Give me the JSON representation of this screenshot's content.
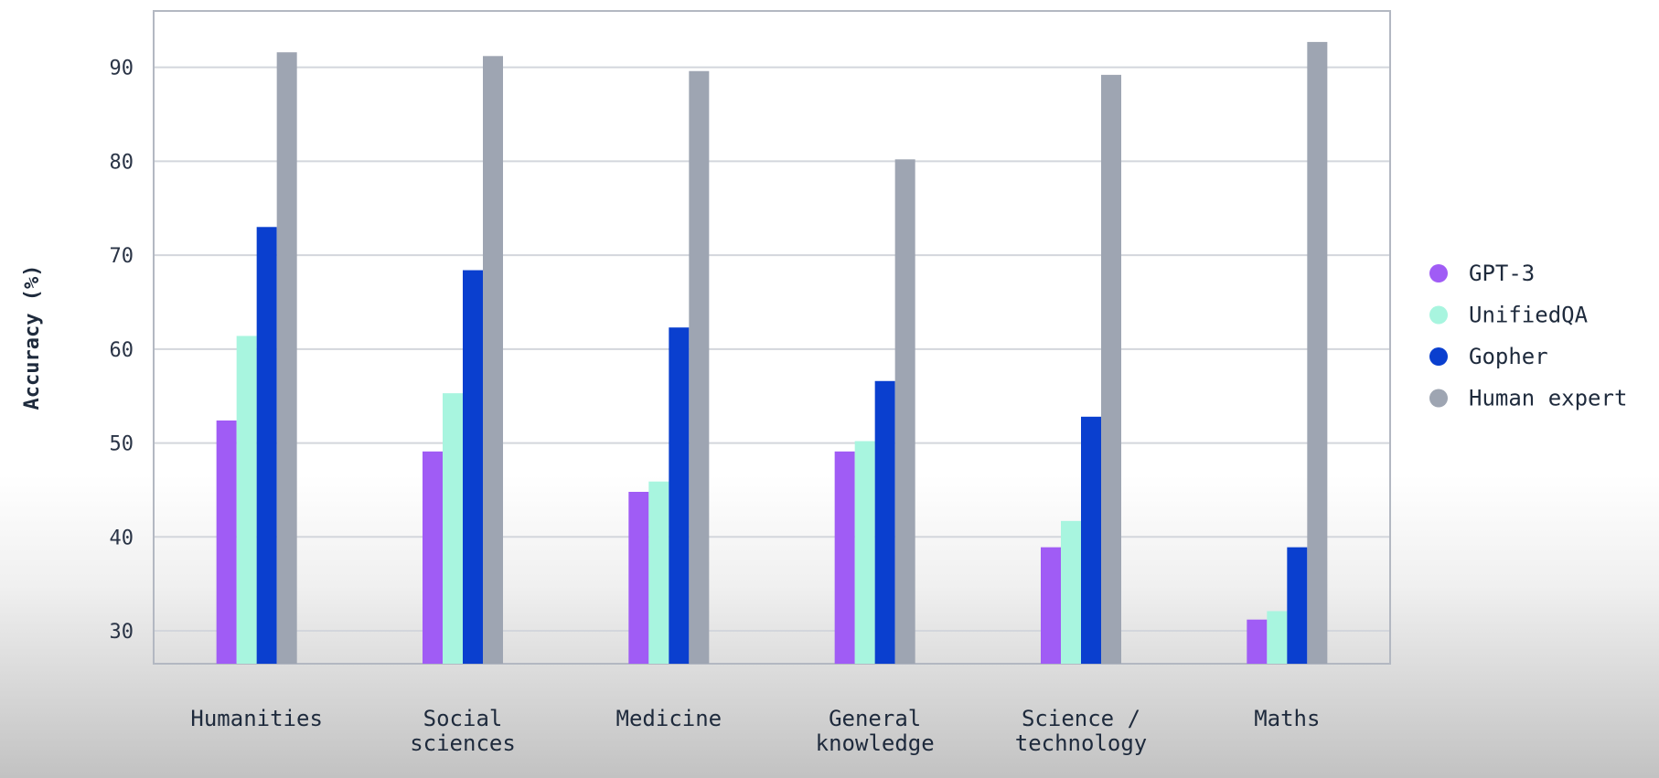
{
  "chart_data": {
    "type": "bar",
    "title": "",
    "xlabel": "",
    "ylabel": "Accuracy (%)",
    "ylim": [
      26.5,
      96
    ],
    "yticks": [
      30,
      40,
      50,
      60,
      70,
      80,
      90
    ],
    "grid": true,
    "legend_position": "right",
    "categories": [
      [
        "Humanities"
      ],
      [
        "Social",
        "sciences"
      ],
      [
        "Medicine"
      ],
      [
        "General",
        "knowledge"
      ],
      [
        "Science /",
        "technology"
      ],
      [
        "Maths"
      ]
    ],
    "series": [
      {
        "name": "GPT-3",
        "color": "#a05cf5",
        "values": [
          52.4,
          49.1,
          44.8,
          49.1,
          38.9,
          31.2
        ]
      },
      {
        "name": "UnifiedQA",
        "color": "#a8f5df",
        "values": [
          61.4,
          55.3,
          45.9,
          50.2,
          41.7,
          32.1
        ]
      },
      {
        "name": "Gopher",
        "color": "#0a3fcf",
        "values": [
          73.0,
          68.4,
          62.3,
          56.6,
          52.8,
          38.9
        ]
      },
      {
        "name": "Human expert",
        "color": "#9ea5b2",
        "values": [
          91.6,
          91.2,
          89.6,
          80.2,
          89.2,
          92.7
        ]
      }
    ]
  }
}
